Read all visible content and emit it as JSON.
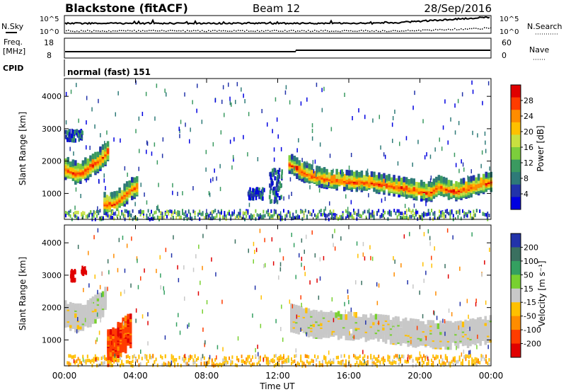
{
  "header": {
    "station": "Blackstone (fitACF)",
    "beam": "Beam 12",
    "date": "28/Sep/2016"
  },
  "noise_panel": {
    "left_label": "N.Sky",
    "right_label": "N.Search",
    "ticks": [
      "10^5",
      "10^0"
    ]
  },
  "freq_panel": {
    "label_line1": "Freq.",
    "label_line2": "[MHz]",
    "left_ticks": [
      "18",
      "8"
    ],
    "right_label": "Nave",
    "right_ticks": [
      "60",
      "0"
    ]
  },
  "cpid": {
    "label": "CPID",
    "text": "normal (fast) 151"
  },
  "chart_data": [
    {
      "type": "heatmap",
      "name": "power",
      "ylabel": "Slant Range [km]",
      "yticks": [
        1000,
        2000,
        3000,
        4000
      ],
      "ylim": [
        200,
        4550
      ],
      "xlim_hours": [
        0,
        24
      ],
      "colorbar": {
        "label": "Power [dB]",
        "ticks": [
          "28",
          "24",
          "20",
          "16",
          "12",
          "8",
          "4"
        ],
        "colors": [
          "#e00000",
          "#ff3c00",
          "#ff8c00",
          "#ffc000",
          "#c8e040",
          "#7ccd3c",
          "#3a9a60",
          "#2e7a78",
          "#2233aa",
          "#0000e0"
        ]
      },
      "bands": [
        {
          "x": [
            0,
            0.3,
            0.6,
            1,
            1.4,
            1.8,
            2.2,
            2.4
          ],
          "y": [
            1800,
            1700,
            1650,
            1700,
            1850,
            2000,
            2200,
            2350
          ],
          "width": 300
        },
        {
          "x": [
            2.2,
            2.7,
            3.2,
            3.7,
            4.1
          ],
          "y": [
            700,
            700,
            900,
            1150,
            1250
          ],
          "width": 280
        },
        {
          "x": [
            12.6,
            13,
            13.5,
            14,
            15,
            16,
            17,
            18,
            19,
            20,
            20.5,
            21,
            21.5,
            22,
            23,
            24
          ],
          "y": [
            1950,
            1800,
            1650,
            1550,
            1450,
            1400,
            1380,
            1300,
            1200,
            1100,
            1050,
            1250,
            1150,
            1100,
            1250,
            1400
          ],
          "width": 260
        }
      ],
      "clusters": [
        {
          "x": [
            0,
            1
          ],
          "y": [
            2700,
            3000
          ]
        },
        {
          "x": [
            10.3,
            11.2
          ],
          "y": [
            900,
            1200
          ]
        },
        {
          "x": [
            11.5,
            12.2
          ],
          "y": [
            800,
            1800
          ]
        }
      ]
    },
    {
      "type": "heatmap",
      "name": "velocity",
      "ylabel": "Slant Range [km]",
      "yticks": [
        1000,
        2000,
        3000,
        4000
      ],
      "ylim": [
        200,
        4550
      ],
      "xlim_hours": [
        0,
        24
      ],
      "xticks": [
        "00:00",
        "04:00",
        "08:00",
        "12:00",
        "16:00",
        "20:00",
        "00:00"
      ],
      "xlabel": "Time UT",
      "colorbar": {
        "label": "Velocity [m s⁻¹]",
        "ticks": [
          "200",
          "100",
          "50",
          "15",
          "-15",
          "-50",
          "-100",
          "-200"
        ],
        "colors": [
          "#2233aa",
          "#3a7060",
          "#34a060",
          "#78d030",
          "#c8c8c8",
          "#ffc000",
          "#ff8c00",
          "#ff3c00",
          "#e00000"
        ]
      },
      "bands": [
        {
          "x": [
            0,
            0.5,
            1,
            1.5,
            2,
            2.3
          ],
          "y": [
            1800,
            1700,
            1700,
            1900,
            2100,
            2300
          ],
          "width": 380,
          "color": "gray"
        },
        {
          "x": [
            2.4,
            2.8,
            3.2,
            3.7
          ],
          "y": [
            750,
            900,
            1100,
            1300
          ],
          "width": 500,
          "color": "red"
        },
        {
          "x": [
            12.7,
            14,
            16,
            18,
            20,
            22,
            24
          ],
          "y": [
            1700,
            1500,
            1450,
            1350,
            1200,
            1150,
            1350
          ],
          "width": 380,
          "color": "gray"
        }
      ]
    }
  ]
}
